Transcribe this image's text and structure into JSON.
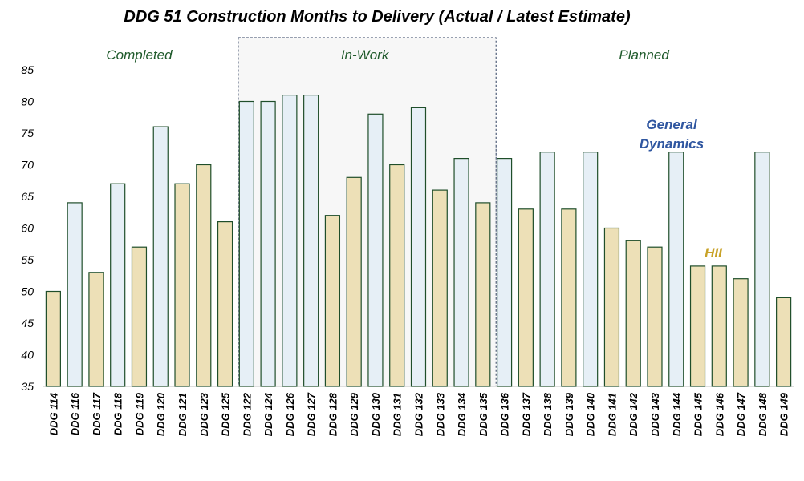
{
  "chart_data": {
    "type": "bar",
    "title": "DDG 51 Construction Months to Delivery (Actual / Latest Estimate)",
    "ylim": [
      35,
      85
    ],
    "yticks": [
      35,
      40,
      45,
      50,
      55,
      60,
      65,
      70,
      75,
      80,
      85
    ],
    "categories": [
      "DDG 114",
      "DDG 116",
      "DDG 117",
      "DDG 118",
      "DDG 119",
      "DDG 120",
      "DDG 121",
      "DDG 123",
      "DDG 125",
      "DDG 122",
      "DDG 124",
      "DDG 126",
      "DDG 127",
      "DDG 128",
      "DDG 129",
      "DDG 130",
      "DDG 131",
      "DDG 132",
      "DDG 133",
      "DDG 134",
      "DDG 135",
      "DDG 136",
      "DDG 137",
      "DDG 138",
      "DDG 139",
      "DDG 140",
      "DDG 141",
      "DDG 142",
      "DDG 143",
      "DDG 144",
      "DDG 145",
      "DDG 146",
      "DDG 147",
      "DDG 148",
      "DDG 149"
    ],
    "values": [
      50,
      64,
      53,
      67,
      57,
      76,
      67,
      70,
      61,
      80,
      80,
      81,
      81,
      62,
      68,
      78,
      70,
      79,
      66,
      71,
      64,
      71,
      63,
      72,
      63,
      72,
      60,
      58,
      57,
      72,
      54,
      54,
      52,
      72,
      49
    ],
    "builder": [
      "HII",
      "GD",
      "HII",
      "GD",
      "HII",
      "GD",
      "HII",
      "HII",
      "HII",
      "GD",
      "GD",
      "GD",
      "GD",
      "HII",
      "HII",
      "GD",
      "HII",
      "GD",
      "HII",
      "GD",
      "HII",
      "GD",
      "HII",
      "GD",
      "HII",
      "GD",
      "HII",
      "HII",
      "HII",
      "GD",
      "HII",
      "HII",
      "HII",
      "GD",
      "HII"
    ],
    "sections": [
      {
        "label": "Completed",
        "start_index": 0,
        "end_index": 8
      },
      {
        "label": "In-Work",
        "start_index": 9,
        "end_index": 20
      },
      {
        "label": "Planned",
        "start_index": 21,
        "end_index": 34
      }
    ],
    "highlighted_section": "In-Work",
    "legend": {
      "gd_line1": "General",
      "gd_line2": "Dynamics",
      "hii": "HII"
    },
    "colors": {
      "gd_fill": "#e6eff6",
      "hii_fill": "#ede0b7",
      "bar_stroke": "#1f4e2a",
      "section_text": "#1f5a2b",
      "gd_text": "#2f56a0",
      "hii_text": "#c8a227",
      "highlight_fill": "#f7f7f7",
      "highlight_border": "#2f3f5f"
    },
    "grid": false
  }
}
